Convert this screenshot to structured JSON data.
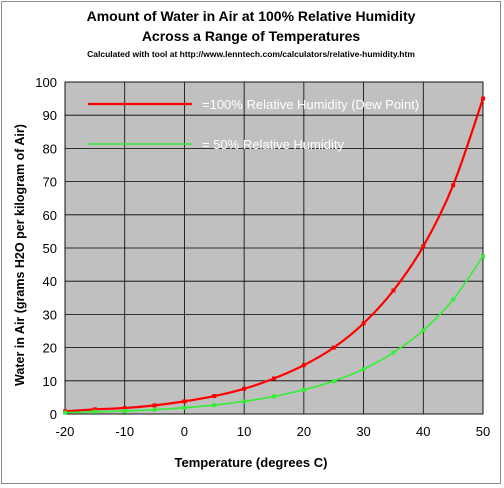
{
  "chart_data": {
    "type": "line",
    "title": "Amount of Water in Air at 100% Relative Humidity",
    "subtitle": "Across a Range of Temperatures",
    "note": "Calculated with tool at http://www.lenntech.com/calculators/relative-humidity.htm",
    "xlabel": "Temperature (degrees C)",
    "ylabel": "Water in Air (grams H2O per kilogram of Air)",
    "xlim": [
      -20,
      50
    ],
    "ylim": [
      0,
      100
    ],
    "xticks": [
      -20,
      -10,
      0,
      10,
      20,
      30,
      40,
      50
    ],
    "yticks": [
      0,
      10,
      20,
      30,
      40,
      50,
      60,
      70,
      80,
      90,
      100
    ],
    "grid": true,
    "legend_placement": "top-left",
    "plot_background": "#c0c0c0",
    "series": [
      {
        "name": "=100% Relative Humidity (Dew Point)",
        "color": "#ff0000",
        "x": [
          -20,
          -15,
          -10,
          -5,
          0,
          5,
          10,
          15,
          20,
          25,
          30,
          35,
          40,
          45,
          50
        ],
        "y": [
          0.8,
          1.4,
          1.8,
          2.6,
          3.8,
          5.4,
          7.6,
          10.7,
          14.7,
          20.0,
          27.3,
          37.2,
          50.5,
          68.9,
          95.0
        ]
      },
      {
        "name": "=   50% Relative Humidity",
        "color": "#33ee33",
        "x": [
          -20,
          -15,
          -10,
          -5,
          0,
          5,
          10,
          15,
          20,
          25,
          30,
          35,
          40,
          45,
          50
        ],
        "y": [
          0.4,
          0.7,
          0.9,
          1.3,
          1.9,
          2.7,
          3.8,
          5.3,
          7.3,
          9.9,
          13.5,
          18.5,
          25.2,
          34.5,
          47.5
        ]
      }
    ]
  }
}
